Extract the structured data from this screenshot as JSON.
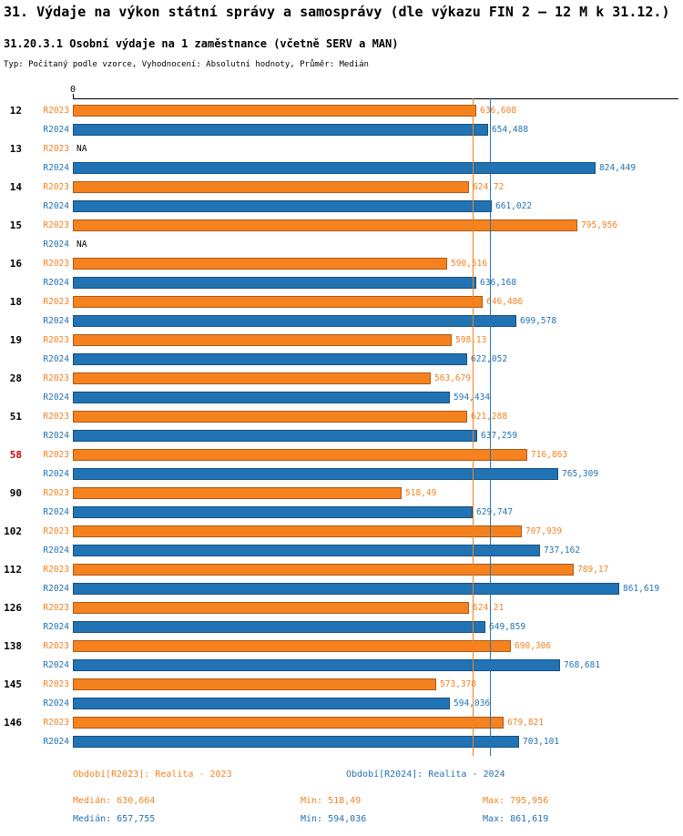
{
  "header": {
    "title": "31. Výdaje na výkon státní správy a samosprávy (dle výkazu FIN 2 – 12 M k 31.12.)",
    "subtitle": "31.20.3.1 Osobní výdaje na 1 zaměstnance (včetně SERV a MAN)",
    "meta": "Typ: Počítaný podle vzorce, Vyhodnocení: Absolutní hodnoty, Průměr: Medián"
  },
  "chart_data": {
    "type": "bar",
    "orientation": "horizontal",
    "origin_label": "0",
    "xlim": [
      0,
      955
    ],
    "grid": false,
    "na_label": "NA",
    "na_color": "#000000",
    "highlight_color": "#cc0000",
    "series": [
      {
        "name": "R2023",
        "color": "#F5821F",
        "legend": "Období[R2023]: Realita - 2023",
        "median": 630.664,
        "stats": {
          "median": "Medián: 630,664",
          "min": "Min: 518,49",
          "max": "Max: 795,956"
        }
      },
      {
        "name": "R2024",
        "color": "#2173B4",
        "legend": "Období[R2024]: Realita - 2024",
        "median": 657.755,
        "stats": {
          "median": "Medián: 657,755",
          "min": "Min: 594,036",
          "max": "Max: 861,619"
        }
      }
    ],
    "groups": [
      {
        "category": "12",
        "highlight": false,
        "values": [
          636.608,
          654.488
        ],
        "labels": [
          "636,608",
          "654,488"
        ]
      },
      {
        "category": "13",
        "highlight": false,
        "values": [
          null,
          824.449
        ],
        "labels": [
          "NA",
          "824,449"
        ]
      },
      {
        "category": "14",
        "highlight": false,
        "values": [
          624.72,
          661.022
        ],
        "labels": [
          "624,72",
          "661,022"
        ]
      },
      {
        "category": "15",
        "highlight": false,
        "values": [
          795.956,
          null
        ],
        "labels": [
          "795,956",
          "NA"
        ]
      },
      {
        "category": "16",
        "highlight": false,
        "values": [
          590.516,
          636.168
        ],
        "labels": [
          "590,516",
          "636,168"
        ]
      },
      {
        "category": "18",
        "highlight": false,
        "values": [
          646.486,
          699.578
        ],
        "labels": [
          "646,486",
          "699,578"
        ]
      },
      {
        "category": "19",
        "highlight": false,
        "values": [
          598.13,
          622.052
        ],
        "labels": [
          "598,13",
          "622,052"
        ]
      },
      {
        "category": "28",
        "highlight": false,
        "values": [
          563.679,
          594.434
        ],
        "labels": [
          "563,679",
          "594,434"
        ]
      },
      {
        "category": "51",
        "highlight": false,
        "values": [
          621.288,
          637.259
        ],
        "labels": [
          "621,288",
          "637,259"
        ]
      },
      {
        "category": "58",
        "highlight": true,
        "values": [
          716.863,
          765.309
        ],
        "labels": [
          "716,863",
          "765,309"
        ]
      },
      {
        "category": "90",
        "highlight": false,
        "values": [
          518.49,
          629.747
        ],
        "labels": [
          "518,49",
          "629,747"
        ]
      },
      {
        "category": "102",
        "highlight": false,
        "values": [
          707.939,
          737.162
        ],
        "labels": [
          "707,939",
          "737,162"
        ]
      },
      {
        "category": "112",
        "highlight": false,
        "values": [
          789.17,
          861.619
        ],
        "labels": [
          "789,17",
          "861,619"
        ]
      },
      {
        "category": "126",
        "highlight": false,
        "values": [
          624.21,
          649.859
        ],
        "labels": [
          "624,21",
          "649,859"
        ]
      },
      {
        "category": "138",
        "highlight": false,
        "values": [
          690.306,
          768.681
        ],
        "labels": [
          "690,306",
          "768,681"
        ]
      },
      {
        "category": "145",
        "highlight": false,
        "values": [
          573.378,
          594.036
        ],
        "labels": [
          "573,378",
          "594,036"
        ]
      },
      {
        "category": "146",
        "highlight": false,
        "values": [
          679.821,
          703.101
        ],
        "labels": [
          "679,821",
          "703,101"
        ]
      }
    ]
  }
}
